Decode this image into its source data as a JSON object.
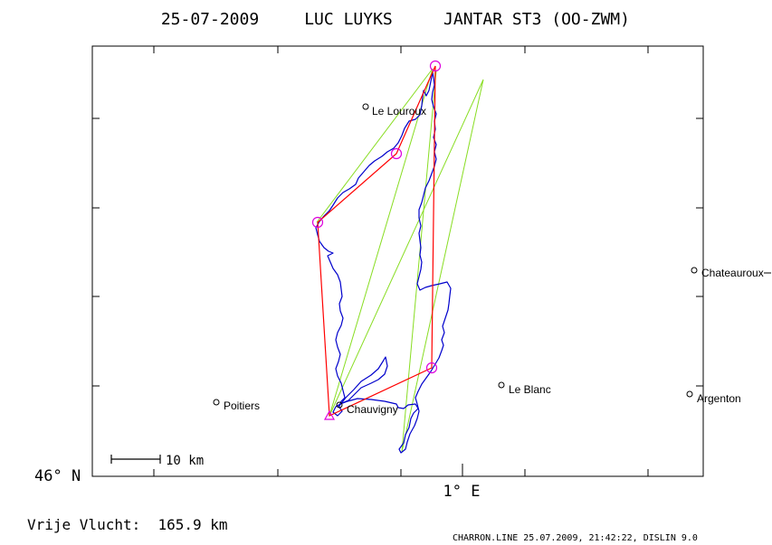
{
  "header": {
    "date": "25-07-2009",
    "pilot": "LUC LUYKS",
    "glider": "JANTAR ST3 (OO-ZWM)"
  },
  "axes": {
    "lat_label": "46° N",
    "lon_label": "1° E"
  },
  "scale_bar": {
    "label": "10 km"
  },
  "towns": [
    {
      "name": "Le Louroux"
    },
    {
      "name": "Chateauroux"
    },
    {
      "name": "Le Blanc"
    },
    {
      "name": "Argenton"
    },
    {
      "name": "Poitiers"
    },
    {
      "name": "Chauvigny"
    }
  ],
  "footer": {
    "distance": "Vrije Vlucht:  165.9 km",
    "credit": "CHARRON.LINE 25.07.2009, 21:42:22, DISLIN 9.0"
  },
  "colors": {
    "frame": "#000000",
    "track": "#0000cc",
    "task": "#ff0000",
    "legs": "#88dd22",
    "turnpoint": "#dd00dd"
  }
}
